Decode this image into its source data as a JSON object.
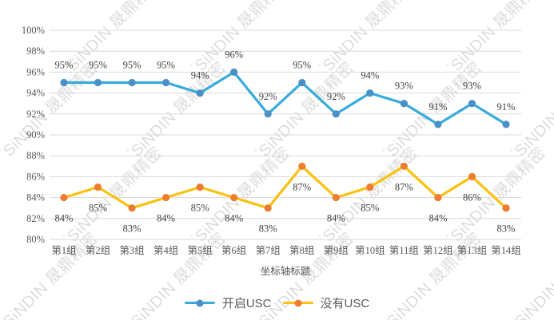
{
  "watermark": {
    "brand": "SiNDIN",
    "company": "晟鼎精密"
  },
  "chart_data": {
    "type": "line",
    "title": "",
    "xlabel": "坐标轴标题",
    "ylabel": "",
    "categories": [
      "第1组",
      "第2组",
      "第3组",
      "第4组",
      "第5组",
      "第6组",
      "第7组",
      "第8组",
      "第9组",
      "第10组",
      "第11组",
      "第12组",
      "第13组",
      "第14组"
    ],
    "series": [
      {
        "name": "开启USC",
        "values": [
          95,
          95,
          95,
          95,
          94,
          96,
          92,
          95,
          92,
          94,
          93,
          91,
          93,
          91
        ],
        "line_color": "#36ABDC",
        "marker_color": "#4A8FC6",
        "label_position": "above"
      },
      {
        "name": "没有USC",
        "values": [
          84,
          85,
          83,
          84,
          85,
          84,
          83,
          87,
          84,
          85,
          87,
          84,
          86,
          83
        ],
        "line_color": "#FDC00F",
        "marker_color": "#EC7D31",
        "label_position": "below"
      }
    ],
    "ylim": [
      80,
      100
    ],
    "ytick_step": 2,
    "ytick_suffix": "%",
    "data_label_suffix": "%",
    "grid": true,
    "legend_position": "bottom",
    "data_labels": true
  },
  "style_colors": {
    "grid": "#D9D9D9",
    "axis_text": "#595959",
    "data_label_text": "#404040",
    "legend_text": "#595959",
    "watermark_text": "#DCDCDC"
  }
}
